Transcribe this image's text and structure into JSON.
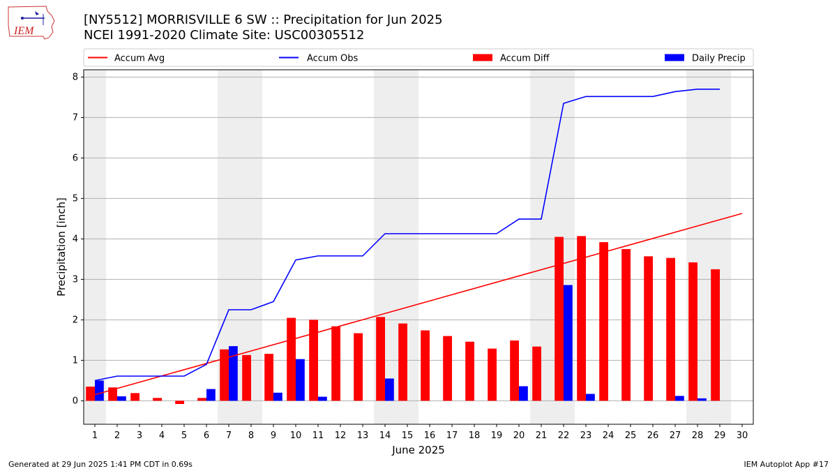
{
  "header": {
    "title": "[NY5512] MORRISVILLE 6 SW :: Precipitation for Jun 2025",
    "subtitle": "NCEI 1991-2020 Climate Site: USC00305512",
    "logo_text": "IEM"
  },
  "footer": {
    "generated": "Generated at 29 Jun 2025 1:41 PM CDT in 0.69s",
    "app": "IEM Autoplot App #17"
  },
  "colors": {
    "avg": "#ff0000",
    "obs": "#0000ff",
    "diff": "#ff0000",
    "daily": "#0000ff",
    "weekend_shade": "#eeeeee",
    "grid": "#b0b0b0"
  },
  "chart_data": {
    "type": "bar",
    "xlabel": "June 2025",
    "ylabel": "Precipitation [inch]",
    "ylim": [
      -0.58,
      8.18
    ],
    "yticks": [
      0,
      1,
      2,
      3,
      4,
      5,
      6,
      7,
      8
    ],
    "xlim": [
      0.5,
      30.5
    ],
    "days": [
      1,
      2,
      3,
      4,
      5,
      6,
      7,
      8,
      9,
      10,
      11,
      12,
      13,
      14,
      15,
      16,
      17,
      18,
      19,
      20,
      21,
      22,
      23,
      24,
      25,
      26,
      27,
      28,
      29,
      30
    ],
    "weekend_ranges": [
      [
        0.5,
        1.5
      ],
      [
        6.5,
        8.5
      ],
      [
        13.5,
        15.5
      ],
      [
        20.5,
        22.5
      ],
      [
        27.5,
        29.5
      ]
    ],
    "grid": "horizontal",
    "legend": {
      "position": "top",
      "entries": [
        "Accum Avg",
        "Accum Obs",
        "Accum Diff",
        "Daily Precip"
      ]
    },
    "series": [
      {
        "name": "Accum Avg",
        "kind": "line",
        "x": [
          1,
          30
        ],
        "values": [
          0.15,
          4.63
        ]
      },
      {
        "name": "Accum Obs",
        "kind": "line",
        "x": [
          1,
          2,
          3,
          4,
          5,
          6,
          7,
          8,
          9,
          10,
          11,
          12,
          13,
          14,
          15,
          16,
          17,
          18,
          19,
          20,
          21,
          22,
          23,
          24,
          25,
          26,
          27,
          28,
          29
        ],
        "values": [
          0.5,
          0.61,
          0.61,
          0.61,
          0.61,
          0.9,
          2.25,
          2.25,
          2.45,
          3.48,
          3.58,
          3.58,
          3.58,
          4.13,
          4.13,
          4.13,
          4.13,
          4.13,
          4.13,
          4.49,
          4.49,
          7.35,
          7.52,
          7.52,
          7.52,
          7.52,
          7.64,
          7.7,
          7.7
        ]
      },
      {
        "name": "Accum Diff",
        "kind": "bar",
        "x": [
          1,
          2,
          3,
          4,
          5,
          6,
          7,
          8,
          9,
          10,
          11,
          12,
          13,
          14,
          15,
          16,
          17,
          18,
          19,
          20,
          21,
          22,
          23,
          24,
          25,
          26,
          27,
          28,
          29
        ],
        "values": [
          0.35,
          0.33,
          0.19,
          0.07,
          -0.08,
          0.07,
          1.27,
          1.13,
          1.16,
          2.05,
          2.0,
          1.84,
          1.67,
          2.07,
          1.91,
          1.74,
          1.6,
          1.46,
          1.29,
          1.49,
          1.34,
          4.05,
          4.07,
          3.92,
          3.75,
          3.57,
          3.53,
          3.42,
          3.25
        ]
      },
      {
        "name": "Daily Precip",
        "kind": "bar",
        "x": [
          1,
          2,
          3,
          4,
          5,
          6,
          7,
          8,
          9,
          10,
          11,
          12,
          13,
          14,
          15,
          16,
          17,
          18,
          19,
          20,
          21,
          22,
          23,
          24,
          25,
          26,
          27,
          28,
          29
        ],
        "values": [
          0.5,
          0.11,
          0,
          0,
          0,
          0.29,
          1.35,
          0,
          0.2,
          1.03,
          0.1,
          0,
          0,
          0.55,
          0,
          0,
          0,
          0,
          0,
          0.36,
          0,
          2.86,
          0.17,
          0,
          0,
          0,
          0.12,
          0.06,
          0
        ]
      }
    ]
  }
}
